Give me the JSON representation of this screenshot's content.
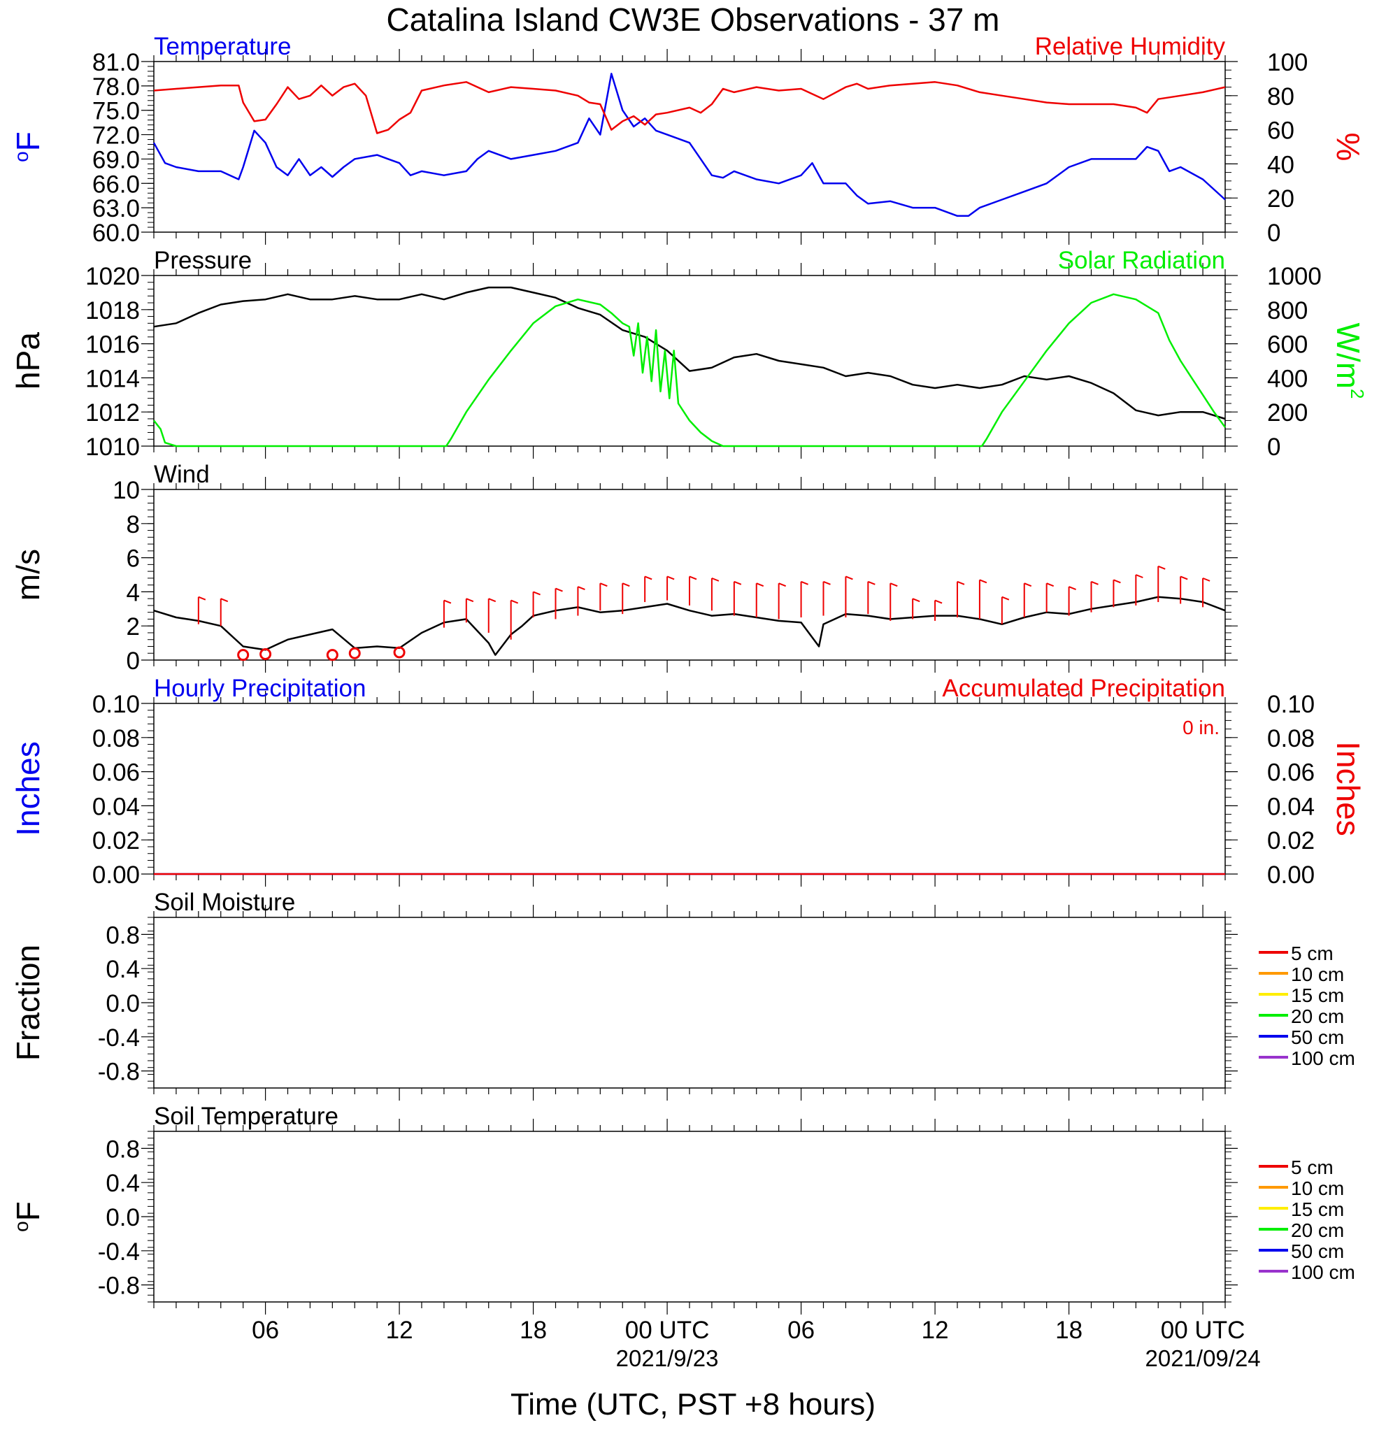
{
  "title": "Catalina Island CW3E Observations - 37 m",
  "x_axis": {
    "label": "Time (UTC, PST +8 hours)",
    "hours_per_day": 24,
    "range_hours": [
      1,
      49
    ],
    "tick_labels": [
      {
        "hour": 6,
        "text": "06"
      },
      {
        "hour": 12,
        "text": "12"
      },
      {
        "hour": 18,
        "text": "18"
      },
      {
        "hour": 24,
        "text": "00 UTC",
        "date": "2021/9/23"
      },
      {
        "hour": 30,
        "text": "06"
      },
      {
        "hour": 36,
        "text": "12"
      },
      {
        "hour": 42,
        "text": "18"
      },
      {
        "hour": 48,
        "text": "00 UTC",
        "date": "2021/09/24"
      }
    ]
  },
  "colors": {
    "blue": "#0000ee",
    "red": "#ee0000",
    "green": "#00ee00",
    "black": "#000000",
    "orange": "#ff9900",
    "yellow": "#ffee00",
    "purple": "#9933cc"
  },
  "chart_data": [
    {
      "id": "temp-rh",
      "type": "line",
      "left_title": "Temperature",
      "right_title": "Relative Humidity",
      "left_ylabel": "oF",
      "right_ylabel": "%",
      "left_ylim": [
        60,
        81
      ],
      "left_ticks": [
        "81.0",
        "78.0",
        "75.0",
        "72.0",
        "69.0",
        "66.0",
        "63.0",
        "60.0"
      ],
      "right_ylim": [
        0,
        100
      ],
      "right_ticks": [
        "100",
        "80",
        "60",
        "40",
        "20",
        "0"
      ],
      "series": [
        {
          "name": "Temperature",
          "axis": "left",
          "color": "#0000ee",
          "x": [
            1,
            1.5,
            2,
            3,
            4,
            4.8,
            5,
            5.5,
            6,
            6.5,
            7,
            7.5,
            8,
            8.5,
            9,
            9.5,
            10,
            11,
            11.5,
            12,
            12.5,
            13,
            14,
            15,
            15.5,
            16,
            17,
            18,
            19,
            20,
            20.5,
            21,
            21.5,
            22,
            22.5,
            23,
            23.5,
            24,
            25,
            25.5,
            26,
            26.5,
            27,
            28,
            29,
            30,
            30.5,
            31,
            32,
            32.5,
            33,
            34,
            35,
            36,
            37,
            37.5,
            38,
            39,
            40,
            41,
            42,
            43,
            44,
            45,
            45.5,
            46,
            46.5,
            47,
            48,
            49
          ],
          "y": [
            71,
            68.5,
            68,
            67.5,
            67.5,
            66.5,
            68,
            72.5,
            71,
            68,
            67,
            69,
            67,
            68,
            66.8,
            68,
            69,
            69.5,
            69,
            68.5,
            67,
            67.5,
            67,
            67.5,
            69,
            70,
            69,
            69.5,
            70,
            71,
            74,
            72,
            79.5,
            75,
            73,
            74,
            72.5,
            72,
            71,
            69,
            67,
            66.7,
            67.5,
            66.5,
            66,
            67,
            68.5,
            66,
            66,
            64.5,
            63.5,
            63.8,
            63,
            63,
            62,
            62,
            63,
            64,
            65,
            66,
            68,
            69,
            69,
            69,
            70.5,
            70,
            67.5,
            68,
            66.5,
            64
          ]
        },
        {
          "name": "Relative Humidity",
          "axis": "right",
          "color": "#ee0000",
          "x": [
            1,
            2,
            3,
            4,
            4.8,
            5,
            5.5,
            6,
            6.5,
            7,
            7.5,
            8,
            8.5,
            9,
            9.5,
            10,
            10.5,
            11,
            11.5,
            12,
            12.5,
            13,
            14,
            15,
            16,
            17,
            18,
            19,
            20,
            20.5,
            21,
            21.5,
            22,
            22.5,
            23,
            23.5,
            24,
            25,
            25.5,
            26,
            26.5,
            27,
            28,
            29,
            30,
            31,
            32,
            32.5,
            33,
            34,
            35,
            36,
            37,
            38,
            39,
            40,
            41,
            42,
            43,
            44,
            45,
            45.5,
            46,
            47,
            48,
            49
          ],
          "y": [
            83,
            84,
            85,
            86,
            86,
            76,
            65,
            66,
            75,
            85,
            78,
            80,
            86,
            80,
            85,
            87,
            80,
            58,
            60,
            66,
            70,
            83,
            86,
            88,
            82,
            85,
            84,
            83,
            80,
            76,
            75,
            60,
            65,
            68,
            63,
            69,
            70,
            73,
            70,
            75,
            84,
            82,
            85,
            83,
            84,
            78,
            85,
            87,
            84,
            86,
            87,
            88,
            86,
            82,
            80,
            78,
            76,
            75,
            75,
            75,
            73,
            70,
            78,
            80,
            82,
            85
          ]
        }
      ]
    },
    {
      "id": "pressure-solar",
      "type": "line",
      "left_title": "Pressure",
      "right_title": "Solar Radiation",
      "left_ylabel": "hPa",
      "right_ylabel": "W/m",
      "right_ylabel_sup": "2",
      "left_ylim": [
        1010,
        1020
      ],
      "left_ticks": [
        "1020",
        "1018",
        "1016",
        "1014",
        "1012",
        "1010"
      ],
      "right_ylim": [
        0,
        1000
      ],
      "right_ticks": [
        "1000",
        "800",
        "600",
        "400",
        "200",
        "0"
      ],
      "series": [
        {
          "name": "Pressure",
          "axis": "left",
          "color": "#000000",
          "x": [
            1,
            2,
            3,
            4,
            5,
            6,
            7,
            8,
            9,
            10,
            11,
            12,
            13,
            14,
            15,
            16,
            17,
            18,
            19,
            20,
            21,
            22,
            23,
            24,
            25,
            26,
            27,
            28,
            29,
            30,
            31,
            32,
            33,
            34,
            35,
            36,
            37,
            38,
            39,
            40,
            41,
            42,
            43,
            44,
            45,
            46,
            47,
            48,
            49
          ],
          "y": [
            1017,
            1017.2,
            1017.8,
            1018.3,
            1018.5,
            1018.6,
            1018.9,
            1018.6,
            1018.6,
            1018.8,
            1018.6,
            1018.6,
            1018.9,
            1018.6,
            1019,
            1019.3,
            1019.3,
            1019,
            1018.7,
            1018.1,
            1017.7,
            1016.8,
            1016.4,
            1015.6,
            1014.4,
            1014.6,
            1015.2,
            1015.4,
            1015,
            1014.8,
            1014.6,
            1014.1,
            1014.3,
            1014.1,
            1013.6,
            1013.4,
            1013.6,
            1013.4,
            1013.6,
            1014.1,
            1013.9,
            1014.1,
            1013.7,
            1013.1,
            1012.1,
            1011.8,
            1012,
            1012,
            1011.6
          ]
        },
        {
          "name": "Solar Radiation",
          "axis": "right",
          "color": "#00ee00",
          "x": [
            1,
            1.3,
            1.5,
            2,
            14.1,
            14.3,
            15,
            16,
            17,
            18,
            19,
            20,
            21,
            21.5,
            22,
            22.3,
            22.5,
            22.7,
            22.9,
            23.1,
            23.3,
            23.5,
            23.7,
            23.9,
            24.1,
            24.3,
            24.5,
            25,
            25.5,
            26,
            26.5,
            38.1,
            38.3,
            39,
            40,
            41,
            42,
            43,
            44,
            45,
            46,
            46.5,
            47,
            47.5,
            48,
            48.5,
            49
          ],
          "y": [
            150,
            100,
            20,
            0,
            0,
            40,
            200,
            390,
            560,
            720,
            820,
            860,
            830,
            780,
            720,
            700,
            530,
            720,
            430,
            640,
            380,
            680,
            320,
            560,
            280,
            560,
            250,
            150,
            80,
            30,
            0,
            0,
            40,
            200,
            380,
            560,
            720,
            840,
            890,
            860,
            780,
            620,
            500,
            400,
            300,
            200,
            110
          ]
        }
      ]
    },
    {
      "id": "wind",
      "type": "line",
      "left_title": "Wind",
      "left_ylabel": "m/s",
      "left_ylim": [
        0,
        10
      ],
      "left_ticks": [
        "10",
        "8",
        "6",
        "4",
        "2",
        "0"
      ],
      "series": [
        {
          "name": "Wind",
          "axis": "left",
          "color": "#000000",
          "x": [
            1,
            2,
            3,
            4,
            5,
            6,
            6.5,
            7,
            8,
            9,
            10,
            11,
            12,
            13,
            14,
            15,
            16,
            16.3,
            17,
            17.5,
            18,
            19,
            20,
            21,
            22,
            23,
            24,
            25,
            26,
            27,
            28,
            29,
            30,
            30.8,
            31,
            32,
            33,
            34,
            35,
            36,
            37,
            38,
            39,
            40,
            41,
            42,
            43,
            44,
            45,
            46,
            47,
            48,
            49
          ],
          "y": [
            2.9,
            2.5,
            2.3,
            2,
            0.8,
            0.6,
            0.9,
            1.2,
            1.5,
            1.8,
            0.7,
            0.8,
            0.7,
            1.6,
            2.2,
            2.4,
            1,
            0.3,
            1.5,
            2,
            2.6,
            2.9,
            3.1,
            2.8,
            2.9,
            3.1,
            3.3,
            2.9,
            2.6,
            2.7,
            2.5,
            2.3,
            2.2,
            0.8,
            2.1,
            2.7,
            2.6,
            2.4,
            2.5,
            2.6,
            2.6,
            2.4,
            2.1,
            2.5,
            2.8,
            2.7,
            3,
            3.2,
            3.4,
            3.7,
            3.6,
            3.4,
            2.9
          ]
        }
      ],
      "barbs": {
        "x": [
          3,
          4,
          14,
          15,
          16,
          17,
          18,
          19,
          20,
          21,
          22,
          23,
          24,
          25,
          26,
          27,
          28,
          29,
          30,
          31,
          32,
          33,
          34,
          35,
          36,
          37,
          38,
          39,
          40,
          41,
          42,
          43,
          44,
          45,
          46,
          47,
          48
        ],
        "y": [
          2.1,
          2,
          1.9,
          2.2,
          1.6,
          1.2,
          2.5,
          2.4,
          2.6,
          2.9,
          2.7,
          3.4,
          3.5,
          3.2,
          2.9,
          2.6,
          2.5,
          2.4,
          2.5,
          2.6,
          2.5,
          2.7,
          2.3,
          2.4,
          2.3,
          2.5,
          2.4,
          2.1,
          2.5,
          2.8,
          2.6,
          2.8,
          3.1,
          3.2,
          3.4,
          3.3,
          3.1
        ],
        "speed": [
          3.7,
          3.6,
          3.5,
          3.6,
          3.6,
          3.5,
          4,
          4.2,
          4.3,
          4.5,
          4.5,
          4.9,
          4.9,
          4.9,
          4.8,
          4.6,
          4.5,
          4.5,
          4.6,
          4.6,
          4.9,
          4.6,
          4.5,
          3.6,
          3.5,
          4.6,
          4.7,
          3.7,
          4.5,
          4.5,
          4.3,
          4.6,
          4.7,
          5,
          5.5,
          4.9,
          4.8
        ]
      },
      "calm_markers": {
        "x": [
          5,
          6,
          9,
          10,
          12
        ],
        "y": [
          0.3,
          0.35,
          0.3,
          0.4,
          0.45
        ]
      }
    },
    {
      "id": "precip",
      "type": "line",
      "left_title": "Hourly Precipitation",
      "right_title": "Accumulated Precipitation",
      "annotation": "0 in.",
      "left_ylabel": "Inches",
      "right_ylabel": "Inches",
      "left_ylim": [
        0,
        0.1
      ],
      "left_ticks": [
        "0.10",
        "0.08",
        "0.06",
        "0.04",
        "0.02",
        "0.00"
      ],
      "right_ylim": [
        0,
        0.1
      ],
      "right_ticks": [
        "0.10",
        "0.08",
        "0.06",
        "0.04",
        "0.02",
        "0.00"
      ],
      "series": [
        {
          "name": "Hourly Precipitation",
          "axis": "left",
          "color": "#0000ee",
          "x": [
            1,
            49
          ],
          "y": [
            0,
            0
          ]
        },
        {
          "name": "Accumulated Precipitation",
          "axis": "left",
          "color": "#ee0000",
          "x": [
            1,
            49
          ],
          "y": [
            0,
            0
          ]
        }
      ]
    },
    {
      "id": "soil-moisture",
      "type": "line",
      "left_title": "Soil Moisture",
      "left_ylabel": "Fraction",
      "left_ylim": [
        -1,
        1
      ],
      "left_ticks": [
        "0.8",
        "0.4",
        "0.0",
        "-0.4",
        "-0.8"
      ],
      "series": [],
      "legend": [
        {
          "name": "5 cm",
          "color": "#ee0000"
        },
        {
          "name": "10 cm",
          "color": "#ff9900"
        },
        {
          "name": "15 cm",
          "color": "#ffee00"
        },
        {
          "name": "20 cm",
          "color": "#00ee00"
        },
        {
          "name": "50 cm",
          "color": "#0000ee"
        },
        {
          "name": "100 cm",
          "color": "#9933cc"
        }
      ]
    },
    {
      "id": "soil-temperature",
      "type": "line",
      "left_title": "Soil Temperature",
      "left_ylabel": "oF",
      "left_ylim": [
        -1,
        1
      ],
      "left_ticks": [
        "0.8",
        "0.4",
        "0.0",
        "-0.4",
        "-0.8"
      ],
      "series": [],
      "legend": [
        {
          "name": "5 cm",
          "color": "#ee0000"
        },
        {
          "name": "10 cm",
          "color": "#ff9900"
        },
        {
          "name": "15 cm",
          "color": "#ffee00"
        },
        {
          "name": "20 cm",
          "color": "#00ee00"
        },
        {
          "name": "50 cm",
          "color": "#0000ee"
        },
        {
          "name": "100 cm",
          "color": "#9933cc"
        }
      ]
    }
  ]
}
